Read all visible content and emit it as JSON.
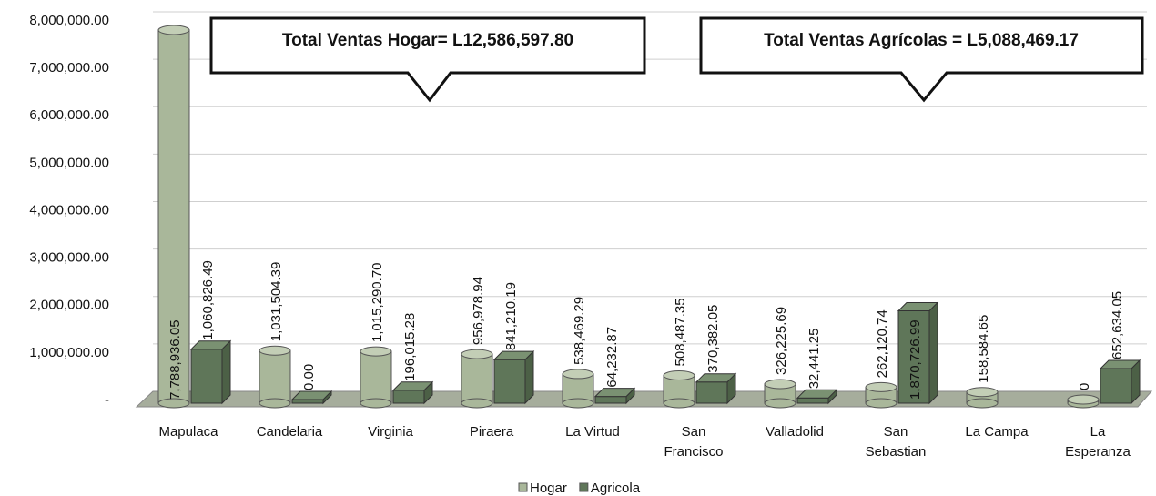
{
  "chart_data": {
    "type": "bar",
    "categories": [
      [
        "Mapulaca"
      ],
      [
        "Candelaria"
      ],
      [
        "Virginia"
      ],
      [
        "Piraera"
      ],
      [
        "La Virtud"
      ],
      [
        "San",
        "Francisco"
      ],
      [
        "Valladolid"
      ],
      [
        "San",
        "Sebastian"
      ],
      [
        "La Campa"
      ],
      [
        "La",
        "Esperanza"
      ]
    ],
    "series": [
      {
        "name": "Hogar",
        "color": "#a9b79a",
        "values": [
          7788936.05,
          1031504.39,
          1015290.7,
          956978.94,
          538469.29,
          508487.35,
          326225.69,
          262120.74,
          158584.65,
          0
        ],
        "value_labels": [
          "7,788,936.05",
          "1,031,504.39",
          "1,015,290.70",
          "956,978.94",
          "538,469.29",
          "508,487.35",
          "326,225.69",
          "262,120.74",
          "158,584.65",
          "0"
        ]
      },
      {
        "name": "Agricola",
        "color": "#5f7659",
        "values": [
          1060826.49,
          0,
          196015.28,
          841210.19,
          64232.87,
          370382.05,
          32441.25,
          1870726.99,
          null,
          652634.05
        ],
        "value_labels": [
          "1,060,826.49",
          "0.00",
          "196,015.28",
          "841,210.19",
          "64,232.87",
          "370,382.05",
          "32,441.25",
          "1,870,726.99",
          null,
          "652,634.05"
        ]
      }
    ],
    "ylim": [
      0,
      8000000
    ],
    "yticks": [
      {
        "value": 0,
        "label": "-"
      },
      {
        "value": 1000000,
        "label": "1,000,000.00"
      },
      {
        "value": 2000000,
        "label": "2,000,000.00"
      },
      {
        "value": 3000000,
        "label": "3,000,000.00"
      },
      {
        "value": 4000000,
        "label": "4,000,000.00"
      },
      {
        "value": 5000000,
        "label": "5,000,000.00"
      },
      {
        "value": 6000000,
        "label": "6,000,000.00"
      },
      {
        "value": 7000000,
        "label": "7,000,000.00"
      },
      {
        "value": 8000000,
        "label": "8,000,000.00"
      }
    ],
    "grid": true,
    "legend": "bottom",
    "annotations": [
      "Total Ventas Hogar= L12,586,597.80",
      "Total Ventas Agrícolas = L5,088,469.17"
    ]
  }
}
